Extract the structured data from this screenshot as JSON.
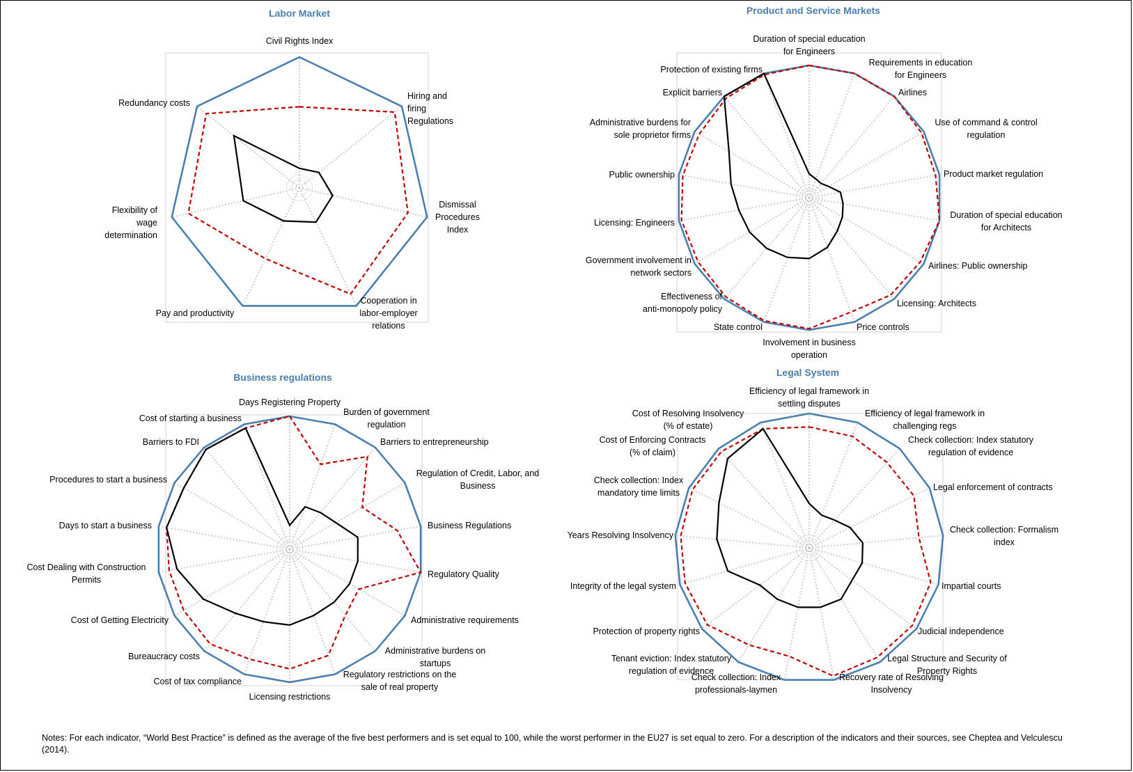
{
  "notes": "Notes: For each indicator, “World Best Practice” is defined as the average of the five best performers and is set equal to 100, while the worst performer in the EU27 is set equal to zero. For a description of the indicators and their sources, see Cheptea and Velculescu (2014).",
  "colors": {
    "best": "#4a7faf",
    "eu": "#c00000",
    "country": "#000000",
    "title": "#4a7faf",
    "grid": "#bfbfbf"
  },
  "chart_data": [
    {
      "type": "radar",
      "title": "Labor Market",
      "rmax": 100,
      "axes": [
        "Civil Rights Index",
        "Hiring and firing Regulations",
        "Dismissal Procedures Index",
        "Cooperation in labor-employer relations",
        "Pay and productivity",
        "Flexibility of wage determination",
        "Redundancy costs"
      ],
      "series": [
        {
          "key": "best",
          "values": [
            100,
            100,
            100,
            100,
            100,
            100,
            100
          ]
        },
        {
          "key": "eu",
          "values": [
            62,
            93,
            85,
            90,
            60,
            87,
            91
          ]
        },
        {
          "key": "country",
          "values": [
            15,
            19,
            26,
            29,
            28,
            44,
            64
          ]
        }
      ]
    },
    {
      "type": "radar",
      "title": "Product and Service Markets",
      "rmax": 100,
      "axes": [
        "Duration of special education for Engineers",
        "Requirements in education for Engineers",
        "Airlines",
        "Use of command & control regulation",
        "Product market regulation",
        "Duration of special education for Architects",
        "Airlines: Public ownership",
        "Licensing: Architects",
        "Price controls",
        "Involvement in business operation",
        "State control",
        "Effectiveness of anti-monopoly policy",
        "Government involvement in network sectors",
        "Licensing: Engineers",
        "Public ownership",
        "Administrative burdens for sole proprietor firms",
        "Protection of existing firms",
        "Explicit barriers"
      ],
      "series": [
        {
          "key": "best",
          "values": [
            100,
            100,
            100,
            100,
            100,
            100,
            100,
            100,
            100,
            100,
            100,
            100,
            100,
            100,
            100,
            100,
            100,
            100
          ]
        },
        {
          "key": "eu",
          "values": [
            100,
            100,
            100,
            98,
            97,
            100,
            97,
            96,
            92,
            99,
            99,
            98,
            97,
            98,
            97,
            96,
            98,
            99
          ]
        },
        {
          "key": "country",
          "values": [
            18,
            15,
            14,
            17,
            24,
            26,
            29,
            33,
            40,
            46,
            48,
            50,
            52,
            54,
            60,
            70,
            100,
            100
          ]
        }
      ]
    },
    {
      "type": "radar",
      "title": "Business regulations",
      "rmax": 100,
      "axes": [
        "Days Registering Property",
        "Burden of government regulation",
        "Barriers to entrepreneurship",
        "Regulation of Credit, Labor, and Business",
        "Business Regulations",
        "Regulatory Quality",
        "Administrative requirements",
        "Administrative burdens on startups",
        "Regulatory restrictions on the sale of real property",
        "Licensing restrictions",
        "Cost of tax compliance",
        "Bureaucracy costs",
        "Cost of Getting Electricity",
        "Cost Dealing with Construction Permits",
        "Days to start a business",
        "Procedures to start a business",
        "Barriers to FDI",
        "Cost of starting a business"
      ],
      "series": [
        {
          "key": "best",
          "values": [
            100,
            100,
            100,
            100,
            100,
            100,
            100,
            100,
            100,
            100,
            100,
            100,
            100,
            100,
            100,
            100,
            100,
            100
          ]
        },
        {
          "key": "eu",
          "values": [
            100,
            68,
            91,
            63,
            82,
            100,
            60,
            65,
            85,
            90,
            88,
            93,
            92,
            92,
            94,
            92,
            98,
            97
          ]
        },
        {
          "key": "country",
          "values": [
            18,
            34,
            36,
            40,
            52,
            52,
            52,
            52,
            53,
            57,
            58,
            63,
            75,
            86,
            94,
            92,
            98,
            97
          ]
        }
      ]
    },
    {
      "type": "radar",
      "title": "Legal System",
      "rmax": 100,
      "axes": [
        "Efficiency of legal framework in settling disputes",
        "Efficiency of legal framework in challenging regs",
        "Check collection: Index statutory regulation of evidence",
        "Legal enforcement of contracts",
        "Check collection: Formalism index",
        "Impartial courts",
        "Judicial independence",
        "Legal Structure and Security of Property Rights",
        "Recovery rate of Resolving Insolvency",
        "Check collection: Index professionals-laymen",
        "Tenant eviction: Index statutory regulation of evidence",
        "Protection of property rights",
        "Integrity of the legal system",
        "Years Resolving Insolvency",
        "Check collection: Index mandatory time limits",
        "Cost of Enforcing Contracts (% of claim)",
        "Cost of Resolving Insolvency (% of estate)"
      ],
      "series": [
        {
          "key": "best",
          "values": [
            100,
            100,
            100,
            100,
            100,
            100,
            100,
            100,
            100,
            100,
            100,
            100,
            100,
            100,
            100,
            100,
            100
          ]
        },
        {
          "key": "eu",
          "values": [
            90,
            89,
            86,
            87,
            82,
            94,
            96,
            96,
            97,
            82,
            85,
            95,
            96,
            96,
            97,
            97,
            95
          ]
        },
        {
          "key": "country",
          "values": [
            33,
            26,
            28,
            34,
            40,
            41,
            40,
            45,
            45,
            45,
            45,
            46,
            63,
            69,
            75,
            90,
            95
          ]
        }
      ]
    }
  ]
}
